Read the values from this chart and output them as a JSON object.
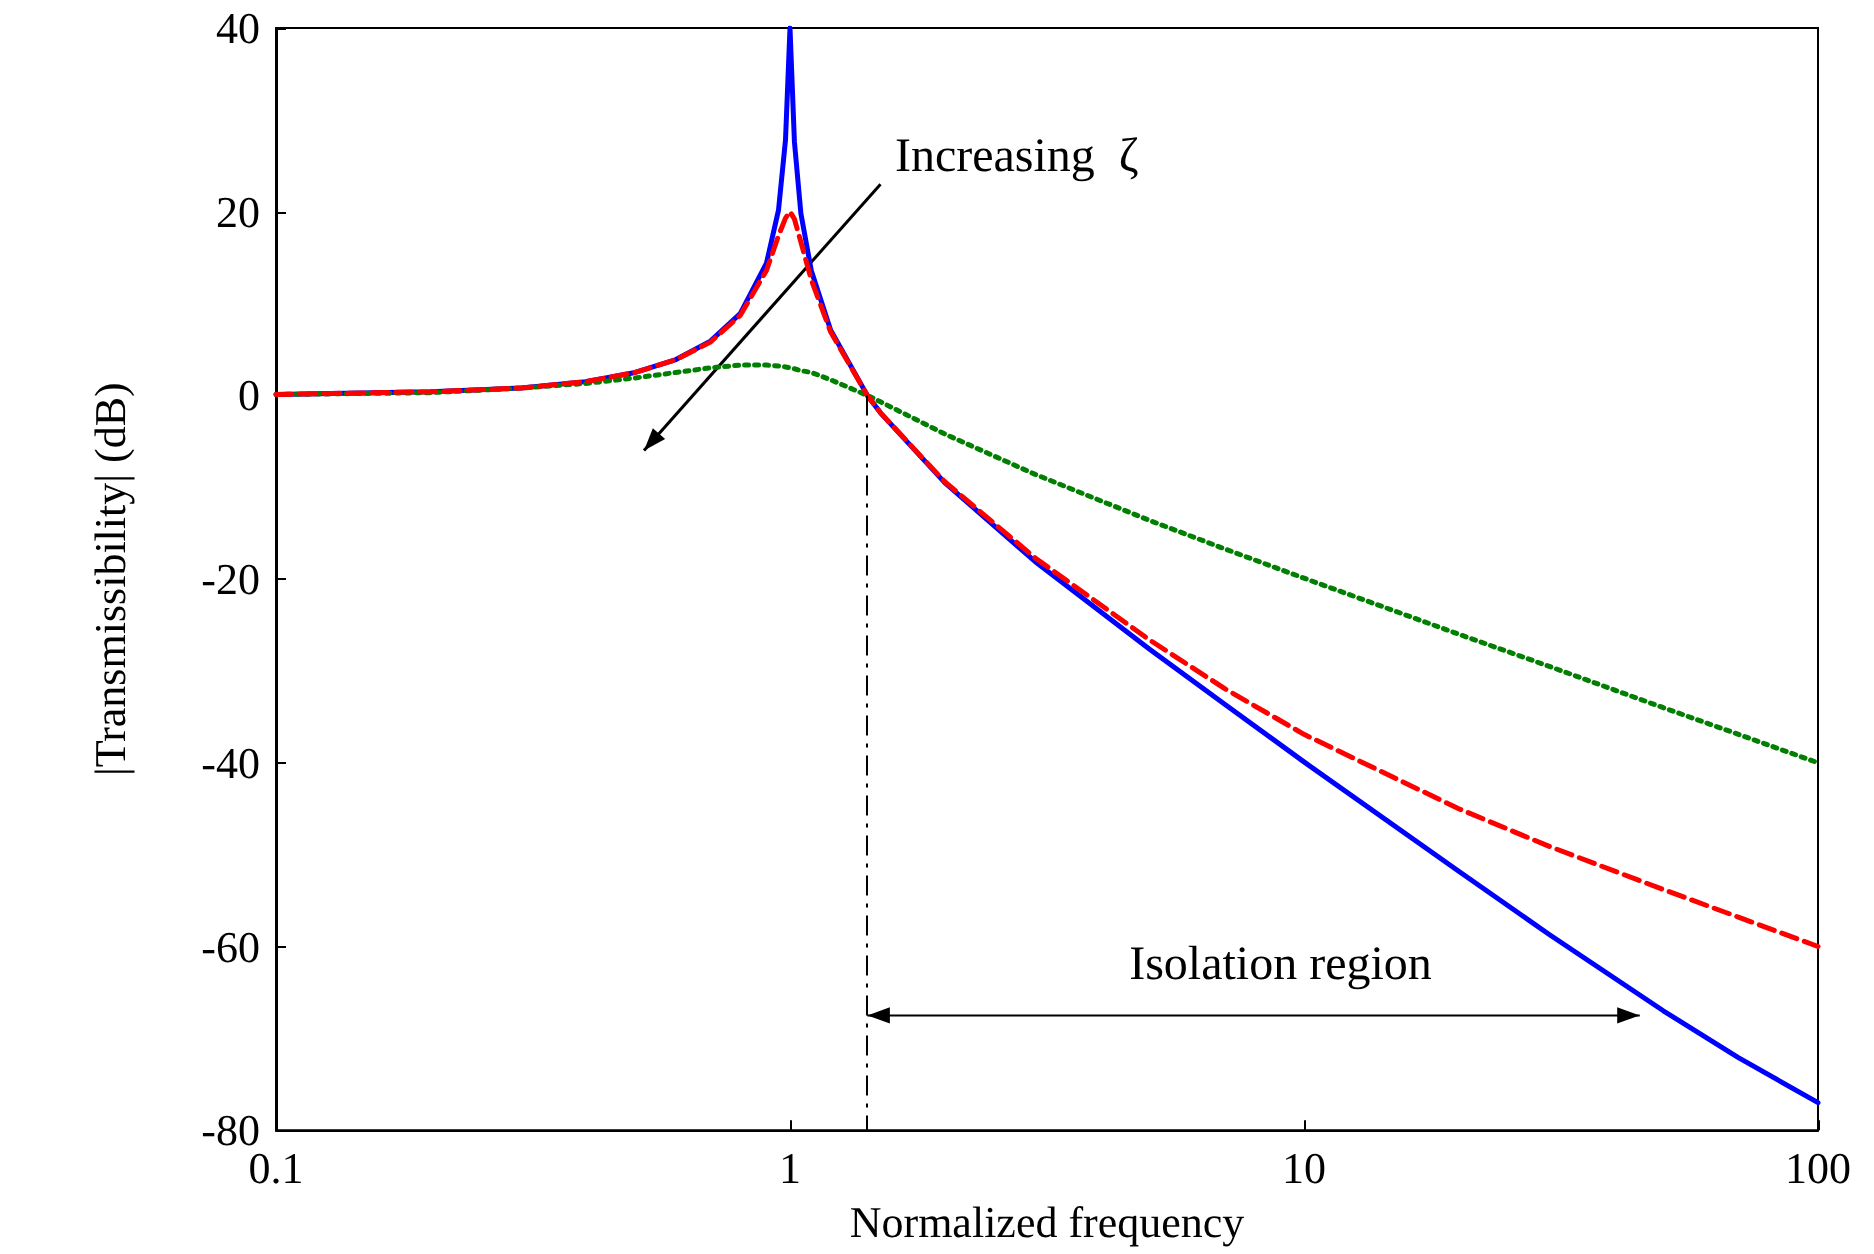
{
  "chart_data": {
    "type": "line",
    "xlabel": "Normalized frequency",
    "ylabel": "|Transmissibility| (dB)",
    "log": "x",
    "xlim": [
      0.1,
      100
    ],
    "xticks": [
      0.1,
      1,
      10,
      100
    ],
    "ylim": [
      -80,
      40
    ],
    "yticks": [
      -80,
      -60,
      -40,
      -20,
      0,
      20,
      40
    ],
    "grid": false,
    "marker": "none",
    "x": [
      0.1,
      0.2,
      0.3,
      0.4,
      0.5,
      0.6,
      0.7,
      0.8,
      0.9,
      0.95,
      0.98,
      1.0,
      1.02,
      1.05,
      1.1,
      1.2,
      1.414,
      1.5,
      2,
      3,
      5,
      7,
      10,
      20,
      30,
      50,
      70,
      100
    ],
    "series": [
      {
        "color": "#0000ff",
        "line_style": "solid",
        "values": [
          0.1,
          0.4,
          0.8,
          1.5,
          2.5,
          3.9,
          5.9,
          8.9,
          14.4,
          20.2,
          27.8,
          40,
          27.6,
          19.8,
          13.6,
          7.1,
          0,
          -1.9,
          -9.5,
          -18.1,
          -27.6,
          -33.6,
          -39.9,
          -51.8,
          -58.7,
          -67.0,
          -72.1,
          -77.0
        ]
      },
      {
        "color": "#ff0000",
        "line_style": "dashed",
        "values": [
          0.1,
          0.4,
          0.8,
          1.5,
          2.5,
          3.9,
          5.8,
          8.7,
          13.6,
          17.4,
          19.3,
          20.0,
          19.2,
          16.7,
          12.6,
          6.9,
          0,
          -1.9,
          -9.4,
          -17.7,
          -26.6,
          -31.9,
          -36.9,
          -45.0,
          -49.1,
          -53.8,
          -56.8,
          -60.0
        ]
      },
      {
        "color": "#007f00",
        "line_style": "dotted",
        "values": [
          0.1,
          0.3,
          0.8,
          1.3,
          1.9,
          2.5,
          3.0,
          3.3,
          3.3,
          3.2,
          3.1,
          3.0,
          2.9,
          2.7,
          2.5,
          1.7,
          0,
          -0.7,
          -4.2,
          -8.6,
          -13.6,
          -16.7,
          -19.9,
          -26.0,
          -29.5,
          -34.0,
          -36.9,
          -40.0
        ]
      }
    ],
    "ref_lines": [
      {
        "axis": "x",
        "value": 1.414,
        "line_style": "dashdot",
        "color": "#000000"
      }
    ],
    "annotations": [
      "Increasing  ζ",
      "Isolation region"
    ]
  }
}
